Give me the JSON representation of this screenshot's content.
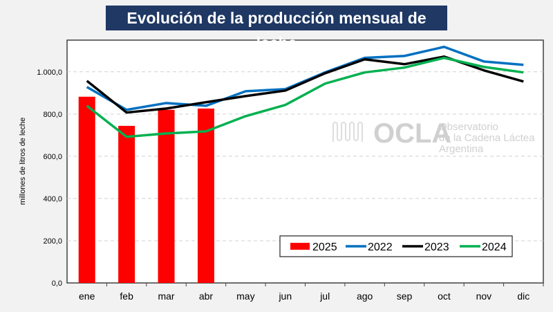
{
  "chart_data": {
    "type": "bar+line",
    "title": "Evolución de la producción mensual de leche",
    "ylabel": "millones de litros de leche",
    "xlabel": "",
    "categories": [
      "ene",
      "feb",
      "mar",
      "abr",
      "may",
      "jun",
      "jul",
      "ago",
      "sep",
      "oct",
      "nov",
      "dic"
    ],
    "ylim": [
      0,
      1150
    ],
    "yticks": [
      0,
      200,
      400,
      600,
      800,
      1000
    ],
    "ytick_labels": [
      "0,0",
      "200,0",
      "400,0",
      "600,0",
      "800,0",
      "1.000,0"
    ],
    "grid": true,
    "legend_position": "bottom-right",
    "series": [
      {
        "name": "2025",
        "kind": "bar",
        "color": "#ff0000",
        "values": [
          882,
          744,
          820,
          826,
          null,
          null,
          null,
          null,
          null,
          null,
          null,
          null
        ]
      },
      {
        "name": "2022",
        "kind": "line",
        "color": "#0070c0",
        "values": [
          928,
          820,
          852,
          839,
          908,
          918,
          997,
          1066,
          1075,
          1118,
          1049,
          1033
        ]
      },
      {
        "name": "2023",
        "kind": "line",
        "color": "#000000",
        "values": [
          957,
          807,
          826,
          856,
          885,
          911,
          993,
          1059,
          1036,
          1072,
          1007,
          954
        ]
      },
      {
        "name": "2024",
        "kind": "line",
        "color": "#00b050",
        "values": [
          839,
          692,
          708,
          718,
          790,
          843,
          944,
          997,
          1020,
          1066,
          1023,
          997
        ]
      }
    ]
  },
  "watermark": {
    "logo": "OCLA",
    "line1": "Observatorio",
    "line2": "de la Cadena Láctea",
    "line3": "Argentina"
  }
}
